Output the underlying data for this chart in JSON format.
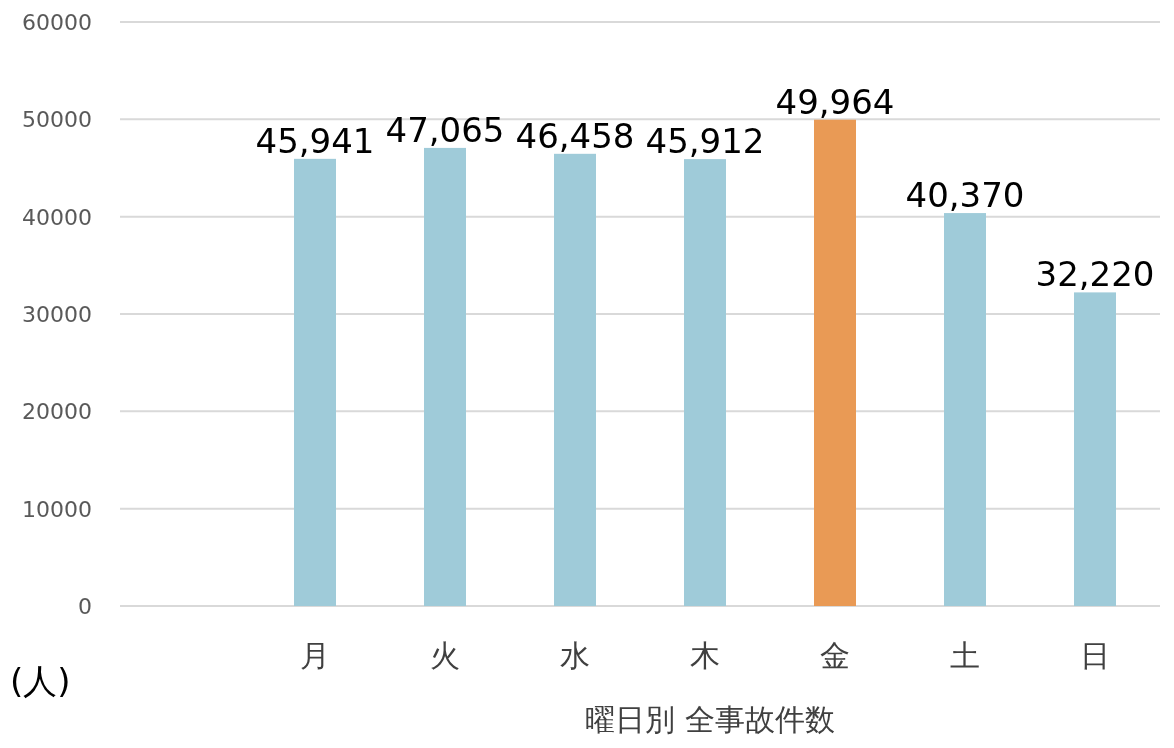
{
  "chart_data": {
    "type": "bar",
    "xlabel": "曜日別 全事故件数",
    "ylabel": "(人)",
    "categories": [
      null,
      "月",
      "火",
      "水",
      "木",
      "金",
      "土",
      "日"
    ],
    "values": [
      null,
      45941,
      47065,
      46458,
      45912,
      49964,
      40370,
      32220
    ],
    "colors": [
      null,
      "#9fcbd9",
      "#9fcbd9",
      "#9fcbd9",
      "#9fcbd9",
      "#e99a55",
      "#9fcbd9",
      "#9fcbd9"
    ],
    "value_labels": [
      null,
      "45,941",
      "47,065",
      "46,458",
      "45,912",
      "49,964",
      "40,370",
      "32,220"
    ],
    "ylim": [
      0,
      60000
    ],
    "yticks": [
      0,
      10000,
      20000,
      30000,
      40000,
      50000,
      60000
    ],
    "grid": "y"
  }
}
